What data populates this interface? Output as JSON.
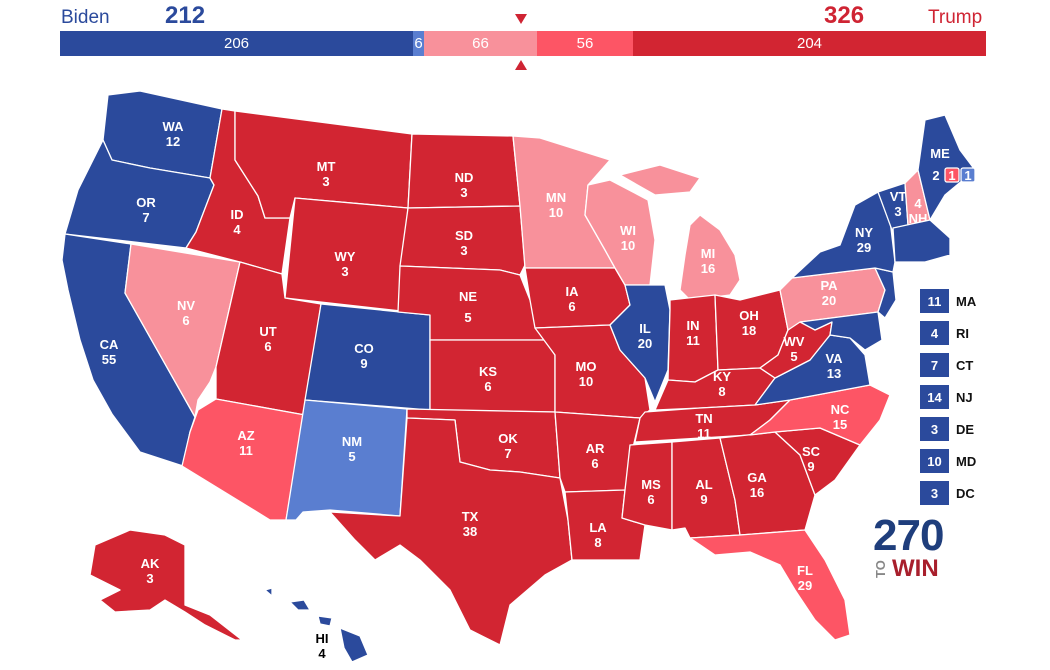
{
  "colors": {
    "safe_dem": "#2b4a9c",
    "lean_dem": "#5a7ed0",
    "safe_rep": "#d22532",
    "likely_rep": "#fd5565",
    "lean_rep": "#f8919b"
  },
  "header": {
    "dem_name": "Biden",
    "dem_total": "212",
    "rep_name": "Trump",
    "rep_total": "326"
  },
  "tally": {
    "safe_dem": "206",
    "lean_dem": "6",
    "lean_rep": "66",
    "likely_rep": "56",
    "safe_rep": "204"
  },
  "states": {
    "WA": {
      "abbr": "WA",
      "ev": "12",
      "rating": "safe_dem"
    },
    "OR": {
      "abbr": "OR",
      "ev": "7",
      "rating": "safe_dem"
    },
    "CA": {
      "abbr": "CA",
      "ev": "55",
      "rating": "safe_dem"
    },
    "NV": {
      "abbr": "NV",
      "ev": "6",
      "rating": "lean_rep"
    },
    "ID": {
      "abbr": "ID",
      "ev": "4",
      "rating": "safe_rep"
    },
    "MT": {
      "abbr": "MT",
      "ev": "3",
      "rating": "safe_rep"
    },
    "WY": {
      "abbr": "WY",
      "ev": "3",
      "rating": "safe_rep"
    },
    "UT": {
      "abbr": "UT",
      "ev": "6",
      "rating": "safe_rep"
    },
    "AZ": {
      "abbr": "AZ",
      "ev": "11",
      "rating": "likely_rep"
    },
    "CO": {
      "abbr": "CO",
      "ev": "9",
      "rating": "safe_dem"
    },
    "NM": {
      "abbr": "NM",
      "ev": "5",
      "rating": "lean_dem"
    },
    "ND": {
      "abbr": "ND",
      "ev": "3",
      "rating": "safe_rep"
    },
    "SD": {
      "abbr": "SD",
      "ev": "3",
      "rating": "safe_rep"
    },
    "NE": {
      "abbr": "NE",
      "ev": "5",
      "rating": "safe_rep"
    },
    "KS": {
      "abbr": "KS",
      "ev": "6",
      "rating": "safe_rep"
    },
    "OK": {
      "abbr": "OK",
      "ev": "7",
      "rating": "safe_rep"
    },
    "TX": {
      "abbr": "TX",
      "ev": "38",
      "rating": "safe_rep"
    },
    "MN": {
      "abbr": "MN",
      "ev": "10",
      "rating": "lean_rep"
    },
    "IA": {
      "abbr": "IA",
      "ev": "6",
      "rating": "safe_rep"
    },
    "MO": {
      "abbr": "MO",
      "ev": "10",
      "rating": "safe_rep"
    },
    "AR": {
      "abbr": "AR",
      "ev": "6",
      "rating": "safe_rep"
    },
    "LA": {
      "abbr": "LA",
      "ev": "8",
      "rating": "safe_rep"
    },
    "WI": {
      "abbr": "WI",
      "ev": "10",
      "rating": "lean_rep"
    },
    "IL": {
      "abbr": "IL",
      "ev": "20",
      "rating": "safe_dem"
    },
    "MI": {
      "abbr": "MI",
      "ev": "16",
      "rating": "lean_rep"
    },
    "IN": {
      "abbr": "IN",
      "ev": "11",
      "rating": "safe_rep"
    },
    "OH": {
      "abbr": "OH",
      "ev": "18",
      "rating": "safe_rep"
    },
    "KY": {
      "abbr": "KY",
      "ev": "8",
      "rating": "safe_rep"
    },
    "TN": {
      "abbr": "TN",
      "ev": "11",
      "rating": "safe_rep"
    },
    "MS": {
      "abbr": "MS",
      "ev": "6",
      "rating": "safe_rep"
    },
    "AL": {
      "abbr": "AL",
      "ev": "9",
      "rating": "safe_rep"
    },
    "GA": {
      "abbr": "GA",
      "ev": "16",
      "rating": "safe_rep"
    },
    "FL": {
      "abbr": "FL",
      "ev": "29",
      "rating": "likely_rep"
    },
    "SC": {
      "abbr": "SC",
      "ev": "9",
      "rating": "safe_rep"
    },
    "NC": {
      "abbr": "NC",
      "ev": "15",
      "rating": "likely_rep"
    },
    "VA": {
      "abbr": "VA",
      "ev": "13",
      "rating": "safe_dem"
    },
    "WV": {
      "abbr": "WV",
      "ev": "5",
      "rating": "safe_rep"
    },
    "PA": {
      "abbr": "PA",
      "ev": "20",
      "rating": "lean_rep"
    },
    "NY": {
      "abbr": "NY",
      "ev": "29",
      "rating": "safe_dem"
    },
    "VT": {
      "abbr": "VT",
      "ev": "3",
      "rating": "safe_dem"
    },
    "NH": {
      "abbr": "NH",
      "ev": "4",
      "rating": "lean_rep"
    },
    "ME": {
      "abbr": "ME",
      "ev": "2",
      "rating": "safe_dem"
    },
    "ME_CD1": {
      "ev": "1",
      "rating": "lean_dem"
    },
    "ME_CD2": {
      "ev": "1",
      "rating": "likely_rep"
    },
    "AK": {
      "abbr": "AK",
      "ev": "3",
      "rating": "safe_rep"
    },
    "HI": {
      "abbr": "HI",
      "ev": "4",
      "rating": "safe_dem"
    }
  },
  "small_states": [
    {
      "abbr": "MA",
      "ev": "11"
    },
    {
      "abbr": "RI",
      "ev": "4"
    },
    {
      "abbr": "CT",
      "ev": "7"
    },
    {
      "abbr": "NJ",
      "ev": "14"
    },
    {
      "abbr": "DE",
      "ev": "3"
    },
    {
      "abbr": "MD",
      "ev": "10"
    },
    {
      "abbr": "DC",
      "ev": "3"
    }
  ],
  "logo": {
    "number": "270",
    "to": "TO",
    "win": "WIN"
  }
}
